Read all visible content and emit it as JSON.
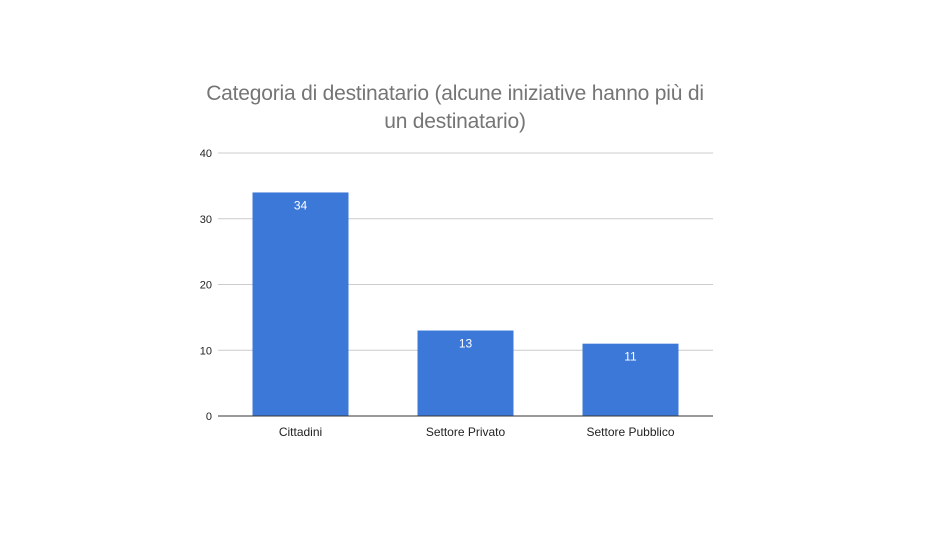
{
  "chart_data": {
    "type": "bar",
    "title": "Categoria di destinatario (alcune iniziative hanno più di un destinatario)",
    "xlabel": "",
    "ylabel": "",
    "categories": [
      "Cittadini",
      "Settore Privato",
      "Settore Pubblico"
    ],
    "values": [
      34,
      13,
      11
    ],
    "data_labels": [
      "34",
      "13",
      "11"
    ],
    "ylim": [
      0,
      40
    ],
    "yticks": [
      0,
      10,
      20,
      30,
      40
    ],
    "grid": true,
    "legend": "none",
    "colors": {
      "bar": "#3c78d8",
      "grid": "#cccccc",
      "axis": "#333333",
      "title": "#757575"
    }
  }
}
